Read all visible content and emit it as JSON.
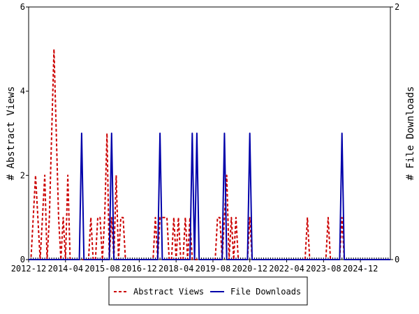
{
  "chart_data": {
    "type": "line",
    "ylabel_left": "# Abstract Views",
    "ylabel_right": "# File Downloads",
    "x_tick_labels": [
      "2012-12",
      "2014-04",
      "2015-08",
      "2016-12",
      "2018-04",
      "2019-08",
      "2020-12",
      "2022-04",
      "2023-08",
      "2024-12"
    ],
    "y_left_ticks": [
      "0",
      "2",
      "4",
      "6"
    ],
    "y_right_ticks": [
      "0",
      "2"
    ],
    "y_left_range": [
      0,
      6
    ],
    "y_right_range": [
      0,
      2
    ],
    "x_range": [
      "2012-12",
      "2026-01"
    ],
    "grid": false,
    "legend_position": "bottom",
    "series": [
      {
        "name": "Abstract Views",
        "axis": "left",
        "color": "#cc0000",
        "style": "dashed",
        "points": [
          [
            "2012-12",
            0
          ],
          [
            "2013-01",
            0
          ],
          [
            "2013-02",
            1
          ],
          [
            "2013-03",
            2
          ],
          [
            "2013-04",
            1
          ],
          [
            "2013-05",
            0
          ],
          [
            "2013-06",
            1
          ],
          [
            "2013-07",
            2
          ],
          [
            "2013-08",
            0
          ],
          [
            "2013-09",
            1
          ],
          [
            "2013-10",
            3
          ],
          [
            "2013-11",
            5
          ],
          [
            "2013-12",
            3
          ],
          [
            "2014-01",
            1
          ],
          [
            "2014-02",
            0
          ],
          [
            "2014-03",
            1
          ],
          [
            "2014-04",
            0
          ],
          [
            "2014-05",
            2
          ],
          [
            "2014-06",
            0
          ],
          [
            "2014-07",
            0
          ],
          [
            "2014-08",
            0
          ],
          [
            "2014-09",
            0
          ],
          [
            "2014-10",
            0
          ],
          [
            "2014-11",
            0
          ],
          [
            "2014-12",
            0
          ],
          [
            "2015-01",
            0
          ],
          [
            "2015-02",
            0
          ],
          [
            "2015-03",
            1
          ],
          [
            "2015-04",
            0
          ],
          [
            "2015-05",
            0
          ],
          [
            "2015-06",
            1
          ],
          [
            "2015-07",
            1
          ],
          [
            "2015-08",
            0
          ],
          [
            "2015-09",
            1
          ],
          [
            "2015-10",
            3
          ],
          [
            "2015-11",
            0
          ],
          [
            "2015-12",
            1
          ],
          [
            "2016-01",
            0
          ],
          [
            "2016-02",
            2
          ],
          [
            "2016-03",
            0
          ],
          [
            "2016-04",
            1
          ],
          [
            "2016-05",
            1
          ],
          [
            "2016-06",
            0
          ],
          [
            "2016-07",
            0
          ],
          [
            "2016-08",
            0
          ],
          [
            "2016-09",
            0
          ],
          [
            "2016-10",
            0
          ],
          [
            "2016-11",
            0
          ],
          [
            "2016-12",
            0
          ],
          [
            "2017-01",
            0
          ],
          [
            "2017-02",
            0
          ],
          [
            "2017-03",
            0
          ],
          [
            "2017-04",
            0
          ],
          [
            "2017-05",
            0
          ],
          [
            "2017-06",
            0
          ],
          [
            "2017-07",
            1
          ],
          [
            "2017-08",
            0
          ],
          [
            "2017-09",
            1
          ],
          [
            "2017-10",
            1
          ],
          [
            "2017-11",
            1
          ],
          [
            "2017-12",
            1
          ],
          [
            "2018-01",
            0
          ],
          [
            "2018-02",
            0
          ],
          [
            "2018-03",
            1
          ],
          [
            "2018-04",
            0
          ],
          [
            "2018-05",
            1
          ],
          [
            "2018-06",
            0
          ],
          [
            "2018-07",
            0
          ],
          [
            "2018-08",
            1
          ],
          [
            "2018-09",
            0
          ],
          [
            "2018-10",
            1
          ],
          [
            "2018-11",
            0
          ],
          [
            "2018-12",
            0
          ],
          [
            "2019-01",
            0
          ],
          [
            "2019-02",
            0
          ],
          [
            "2019-03",
            0
          ],
          [
            "2019-04",
            0
          ],
          [
            "2019-05",
            0
          ],
          [
            "2019-06",
            0
          ],
          [
            "2019-07",
            0
          ],
          [
            "2019-08",
            0
          ],
          [
            "2019-09",
            0
          ],
          [
            "2019-10",
            1
          ],
          [
            "2019-11",
            1
          ],
          [
            "2019-12",
            0
          ],
          [
            "2020-01",
            1
          ],
          [
            "2020-02",
            2
          ],
          [
            "2020-03",
            0
          ],
          [
            "2020-04",
            1
          ],
          [
            "2020-05",
            0
          ],
          [
            "2020-06",
            1
          ],
          [
            "2020-07",
            0
          ],
          [
            "2020-08",
            0
          ],
          [
            "2020-09",
            0
          ],
          [
            "2020-10",
            0
          ],
          [
            "2020-11",
            0
          ],
          [
            "2020-12",
            1
          ],
          [
            "2021-01",
            0
          ],
          [
            "2021-02",
            0
          ],
          [
            "2021-03",
            0
          ],
          [
            "2021-04",
            0
          ],
          [
            "2021-05",
            0
          ],
          [
            "2021-06",
            0
          ],
          [
            "2021-07",
            0
          ],
          [
            "2021-08",
            0
          ],
          [
            "2021-09",
            0
          ],
          [
            "2021-10",
            0
          ],
          [
            "2021-11",
            0
          ],
          [
            "2021-12",
            0
          ],
          [
            "2022-01",
            0
          ],
          [
            "2022-02",
            0
          ],
          [
            "2022-03",
            0
          ],
          [
            "2022-04",
            0
          ],
          [
            "2022-05",
            0
          ],
          [
            "2022-06",
            0
          ],
          [
            "2022-07",
            0
          ],
          [
            "2022-08",
            0
          ],
          [
            "2022-09",
            0
          ],
          [
            "2022-10",
            0
          ],
          [
            "2022-11",
            0
          ],
          [
            "2022-12",
            0
          ],
          [
            "2023-01",
            1
          ],
          [
            "2023-02",
            0
          ],
          [
            "2023-03",
            0
          ],
          [
            "2023-04",
            0
          ],
          [
            "2023-05",
            0
          ],
          [
            "2023-06",
            0
          ],
          [
            "2023-07",
            0
          ],
          [
            "2023-08",
            0
          ],
          [
            "2023-09",
            0
          ],
          [
            "2023-10",
            1
          ],
          [
            "2023-11",
            0
          ],
          [
            "2023-12",
            0
          ],
          [
            "2024-01",
            0
          ],
          [
            "2024-02",
            0
          ],
          [
            "2024-03",
            0
          ],
          [
            "2024-04",
            1
          ],
          [
            "2024-05",
            0
          ],
          [
            "2024-06",
            0
          ],
          [
            "2024-07",
            0
          ],
          [
            "2024-08",
            0
          ],
          [
            "2024-09",
            0
          ],
          [
            "2024-10",
            0
          ],
          [
            "2024-11",
            0
          ],
          [
            "2024-12",
            0
          ],
          [
            "2025-01",
            0
          ],
          [
            "2025-02",
            0
          ],
          [
            "2025-03",
            0
          ],
          [
            "2025-04",
            0
          ],
          [
            "2025-05",
            0
          ],
          [
            "2025-06",
            0
          ],
          [
            "2025-07",
            0
          ],
          [
            "2025-08",
            0
          ],
          [
            "2025-09",
            0
          ],
          [
            "2025-10",
            0
          ],
          [
            "2025-11",
            0
          ],
          [
            "2025-12",
            0
          ],
          [
            "2026-01",
            0
          ]
        ]
      },
      {
        "name": "File Downloads",
        "axis": "right",
        "color": "#0000aa",
        "style": "solid",
        "points": [
          [
            "2012-12",
            0
          ],
          [
            "2014-10",
            0
          ],
          [
            "2014-11",
            1
          ],
          [
            "2014-12",
            0
          ],
          [
            "2015-11",
            0
          ],
          [
            "2015-12",
            1
          ],
          [
            "2016-01",
            0
          ],
          [
            "2017-08",
            0
          ],
          [
            "2017-09",
            1
          ],
          [
            "2017-10",
            0
          ],
          [
            "2018-10",
            0
          ],
          [
            "2018-11",
            1
          ],
          [
            "2018-12",
            0
          ],
          [
            "2019-01",
            1
          ],
          [
            "2019-02",
            0
          ],
          [
            "2019-12",
            0
          ],
          [
            "2020-01",
            1
          ],
          [
            "2020-02",
            0
          ],
          [
            "2020-11",
            0
          ],
          [
            "2020-12",
            1
          ],
          [
            "2021-01",
            0
          ],
          [
            "2024-03",
            0
          ],
          [
            "2024-04",
            1
          ],
          [
            "2024-05",
            0
          ],
          [
            "2026-01",
            0
          ]
        ]
      }
    ]
  }
}
